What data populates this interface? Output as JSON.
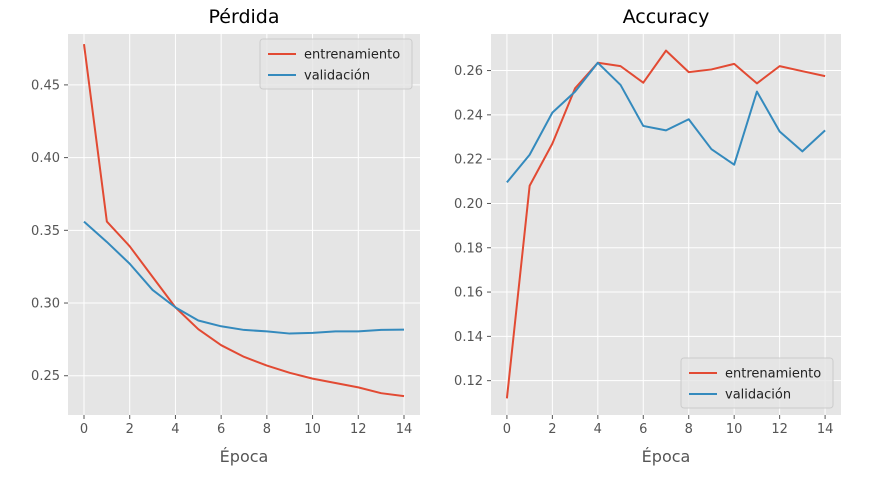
{
  "chart_data": [
    {
      "type": "line",
      "title": "Pérdida",
      "xlabel": "Época",
      "ylabel": "",
      "xlim": [
        -0.7,
        14.7
      ],
      "ylim": [
        0.223,
        0.485
      ],
      "xticks": [
        0,
        2,
        4,
        6,
        8,
        10,
        12,
        14
      ],
      "yticks": [
        0.25,
        0.3,
        0.35,
        0.4,
        0.45
      ],
      "ytick_decimals": 2,
      "grid": true,
      "legend_placement": "upper right",
      "x": [
        0,
        1,
        2,
        3,
        4,
        5,
        6,
        7,
        8,
        9,
        10,
        11,
        12,
        13,
        14
      ],
      "series": [
        {
          "name": "entrenamiento",
          "color": "#e24a33",
          "values": [
            0.478,
            0.356,
            0.339,
            0.318,
            0.297,
            0.282,
            0.271,
            0.263,
            0.257,
            0.252,
            0.248,
            0.245,
            0.242,
            0.238,
            0.236
          ]
        },
        {
          "name": "validación",
          "color": "#348abd",
          "values": [
            0.356,
            0.342,
            0.327,
            0.309,
            0.297,
            0.288,
            0.284,
            0.2815,
            0.2805,
            0.279,
            0.2795,
            0.2805,
            0.2805,
            0.2815,
            0.2817
          ]
        }
      ]
    },
    {
      "type": "line",
      "title": "Accuracy",
      "xlabel": "Época",
      "ylabel": "",
      "xlim": [
        -0.7,
        14.7
      ],
      "ylim": [
        0.1045,
        0.2765
      ],
      "xticks": [
        0,
        2,
        4,
        6,
        8,
        10,
        12,
        14
      ],
      "yticks": [
        0.12,
        0.14,
        0.16,
        0.18,
        0.2,
        0.22,
        0.24,
        0.26
      ],
      "ytick_decimals": 2,
      "grid": true,
      "legend_placement": "lower right",
      "x": [
        0,
        1,
        2,
        3,
        4,
        5,
        6,
        7,
        8,
        9,
        10,
        11,
        12,
        13,
        14
      ],
      "series": [
        {
          "name": "entrenamiento",
          "color": "#e24a33",
          "values": [
            0.112,
            0.208,
            0.227,
            0.252,
            0.2635,
            0.262,
            0.2545,
            0.269,
            0.2593,
            0.2605,
            0.263,
            0.2542,
            0.262,
            0.2597,
            0.2575
          ]
        },
        {
          "name": "validación",
          "color": "#348abd",
          "values": [
            0.2095,
            0.222,
            0.241,
            0.2505,
            0.2635,
            0.2535,
            0.235,
            0.233,
            0.238,
            0.2245,
            0.2175,
            0.2505,
            0.2325,
            0.2235,
            0.233
          ]
        }
      ]
    }
  ]
}
